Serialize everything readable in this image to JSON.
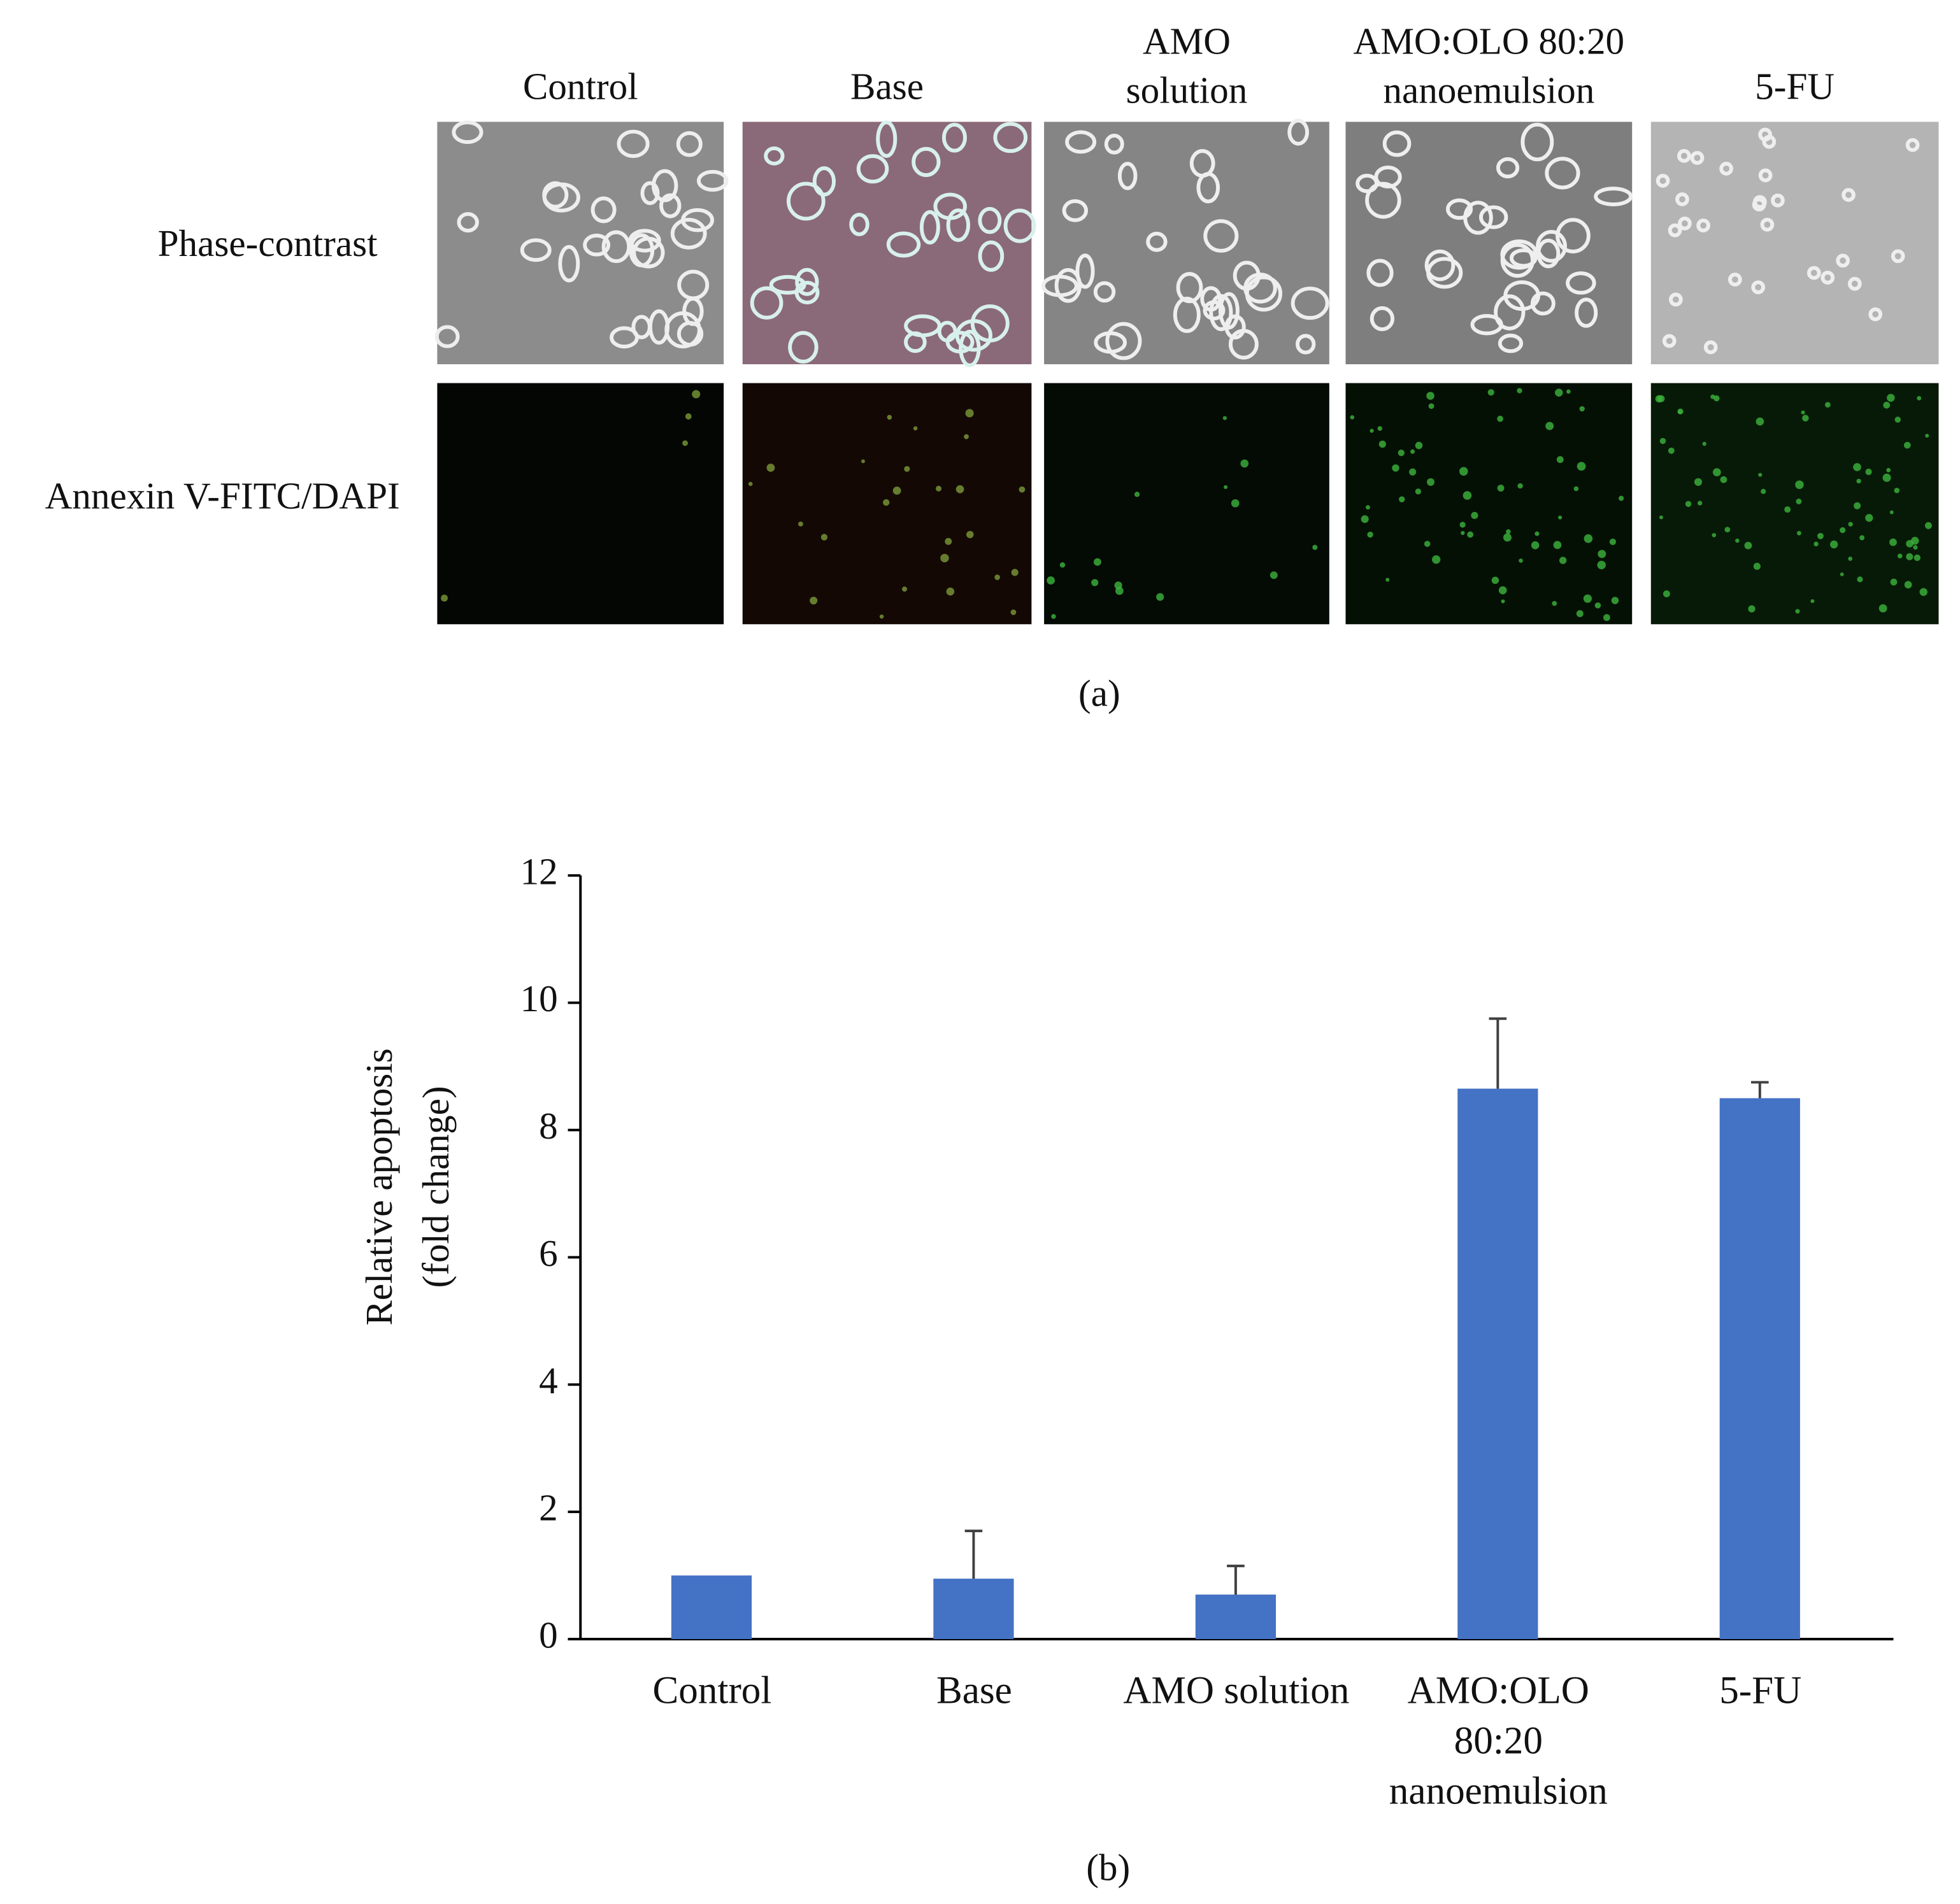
{
  "panel_a": {
    "column_labels": [
      [
        "Control"
      ],
      [
        "Base"
      ],
      [
        "AMO",
        "solution"
      ],
      [
        "AMO:OLO 80:20",
        "nanoemulsion"
      ],
      [
        "5-FU"
      ]
    ],
    "row_labels": [
      "Phase-contrast",
      "Annexin V-FITC/DAPI"
    ],
    "caption": "(a)"
  },
  "chart_data": {
    "type": "bar",
    "categories": [
      "Control",
      "Base",
      "AMO solution",
      "AMO:OLO 80:20 nanoemulsion",
      "5-FU"
    ],
    "values": [
      1.0,
      0.95,
      0.7,
      8.65,
      8.5
    ],
    "errors": [
      null,
      0.75,
      0.45,
      1.1,
      0.25
    ],
    "color": "#4472c4",
    "ylabel": [
      "Relative apoptosis",
      "(fold change)"
    ],
    "ylim": [
      0,
      12
    ],
    "yticks": [
      0,
      2,
      4,
      6,
      8,
      10,
      12
    ],
    "caption": "(b)"
  }
}
